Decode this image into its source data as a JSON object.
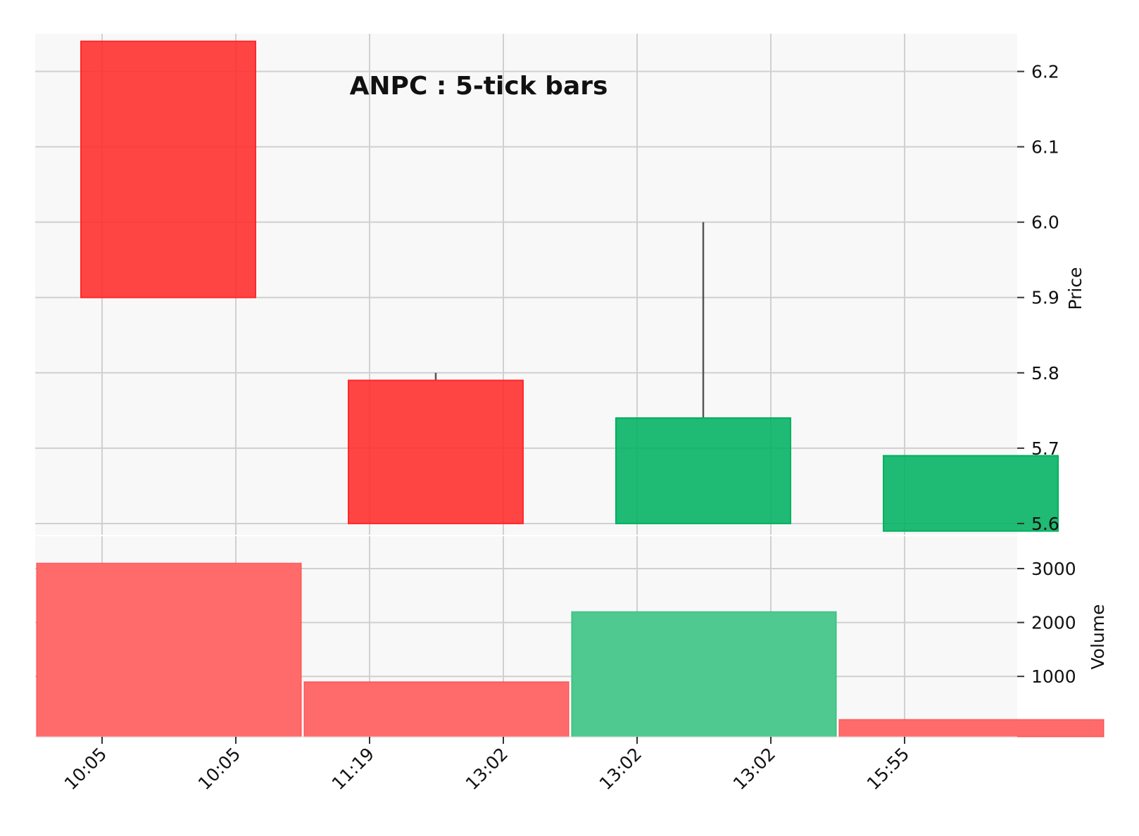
{
  "chart_data": {
    "type": "candlestick",
    "title": "ANPC : 5-tick bars",
    "x_tick_labels": [
      "10:05",
      "10:05",
      "11:19",
      "13:02",
      "13:02",
      "13:02",
      "15:55"
    ],
    "candles": [
      {
        "open": 6.24,
        "high": 6.24,
        "low": 5.9,
        "close": 5.9,
        "direction": "down"
      },
      {
        "open": 5.79,
        "high": 5.8,
        "low": 5.6,
        "close": 5.6,
        "direction": "down"
      },
      {
        "open": 5.6,
        "high": 6.0,
        "low": 5.6,
        "close": 5.74,
        "direction": "up"
      },
      {
        "open": 5.59,
        "high": 5.69,
        "low": 5.59,
        "close": 5.69,
        "direction": "up"
      }
    ],
    "volume": [
      {
        "value": 3100,
        "direction": "down"
      },
      {
        "value": 900,
        "direction": "down"
      },
      {
        "value": 2200,
        "direction": "up"
      },
      {
        "value": 200,
        "direction": "down"
      }
    ],
    "price_axis": {
      "label": "Price",
      "ticks": [
        "5.6",
        "5.7",
        "5.8",
        "5.9",
        "6.0",
        "6.1",
        "6.2"
      ],
      "ylim": [
        5.585,
        6.25
      ]
    },
    "volume_axis": {
      "label": "Volume",
      "ticks": [
        "1000",
        "2000",
        "3000"
      ],
      "ylim": [
        -120,
        3600
      ]
    },
    "grid": true,
    "colors": {
      "up": "#00b060",
      "down": "#ff2a2a",
      "up_volume": "#4fc98f",
      "down_volume": "#ff6b6b",
      "wick": "#555555",
      "grid": "#d0d0d0",
      "panel_bg": "#f8f8f8"
    }
  }
}
